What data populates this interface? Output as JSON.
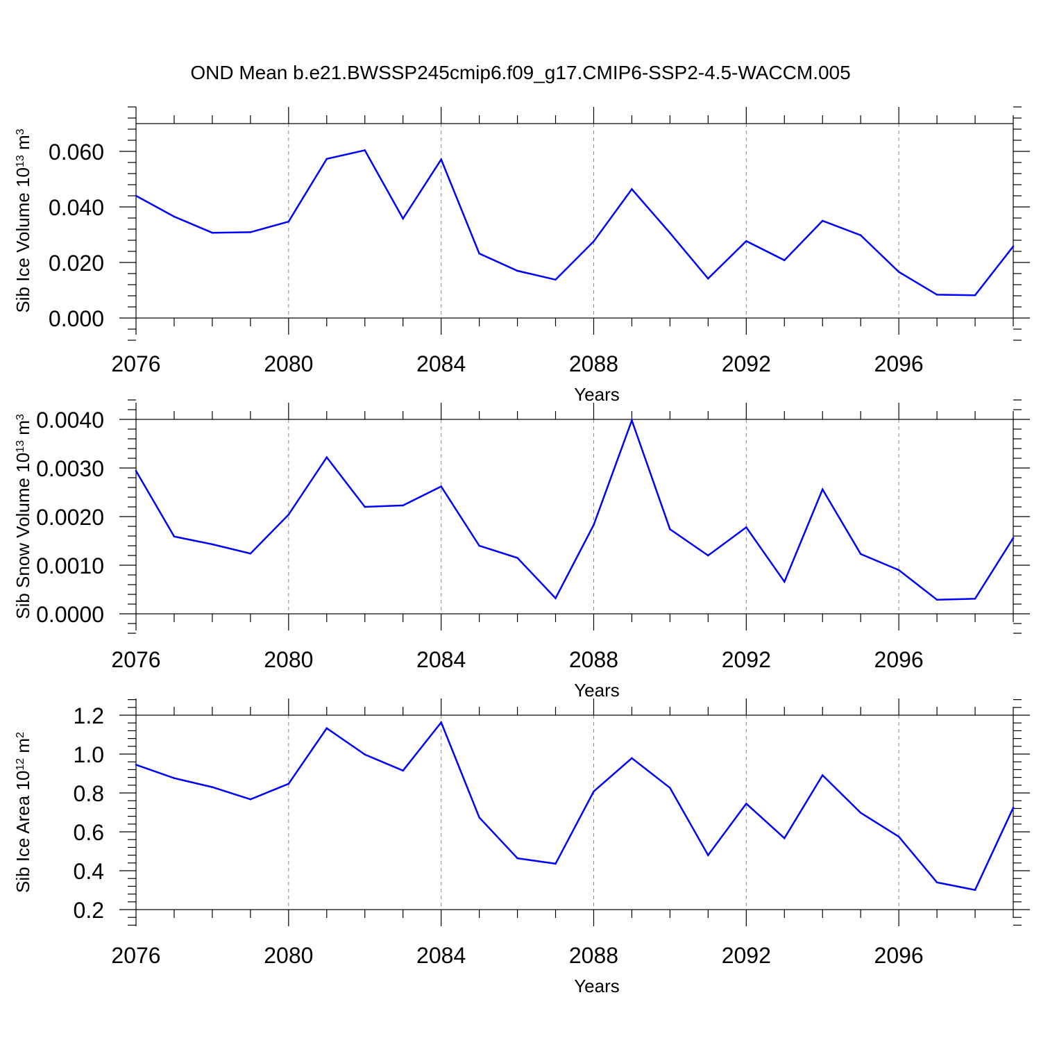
{
  "figure_title": "OND Mean b.e21.BWSSP245cmip6.f09_g17.CMIP6-SSP2-4.5-WACCM.005",
  "colors": {
    "line": "#0000ff",
    "axis": "#000000",
    "grid": "#888888"
  },
  "chart_data": [
    {
      "type": "line",
      "title": "OND Mean b.e21.BWSSP245cmip6.f09_g17.CMIP6-SSP2-4.5-WACCM.005",
      "xlabel": "Years",
      "ylabel_main": "Sib Ice Volume 10",
      "ylabel_exp": "13",
      "ylabel_unit": " m",
      "ylabel_unit_exp": "3",
      "xlim": [
        2076,
        2099
      ],
      "ylim": [
        0.0,
        0.07
      ],
      "xticks": [
        2076,
        2080,
        2084,
        2088,
        2092,
        2096
      ],
      "xtick_labels": [
        "2076",
        "2080",
        "2084",
        "2088",
        "2092",
        "2096"
      ],
      "yticks": [
        0.0,
        0.02,
        0.04,
        0.06
      ],
      "ytick_labels": [
        "0.000",
        "0.020",
        "0.040",
        "0.060"
      ],
      "grid": "vertical dashed at major x ticks",
      "x": [
        2076,
        2077,
        2078,
        2079,
        2080,
        2081,
        2082,
        2083,
        2084,
        2085,
        2086,
        2087,
        2088,
        2089,
        2090,
        2091,
        2092,
        2093,
        2094,
        2095,
        2096,
        2097,
        2098,
        2099
      ],
      "values": [
        0.044,
        0.0365,
        0.0307,
        0.0309,
        0.0347,
        0.0573,
        0.0604,
        0.0358,
        0.0571,
        0.0232,
        0.017,
        0.0138,
        0.0276,
        0.0464,
        0.0306,
        0.0142,
        0.0277,
        0.0208,
        0.035,
        0.0298,
        0.0166,
        0.0084,
        0.0082,
        0.0258
      ]
    },
    {
      "type": "line",
      "xlabel": "Years",
      "ylabel_main": "Sib Snow Volume 10",
      "ylabel_exp": "13",
      "ylabel_unit": " m",
      "ylabel_unit_exp": "3",
      "xlim": [
        2076,
        2099
      ],
      "ylim": [
        0.0,
        0.004
      ],
      "xticks": [
        2076,
        2080,
        2084,
        2088,
        2092,
        2096
      ],
      "xtick_labels": [
        "2076",
        "2080",
        "2084",
        "2088",
        "2092",
        "2096"
      ],
      "yticks": [
        0.0,
        0.001,
        0.002,
        0.003,
        0.004
      ],
      "ytick_labels": [
        "0.0000",
        "0.0010",
        "0.0020",
        "0.0030",
        "0.0040"
      ],
      "grid": "vertical dashed at major x ticks",
      "x": [
        2076,
        2077,
        2078,
        2079,
        2080,
        2081,
        2082,
        2083,
        2084,
        2085,
        2086,
        2087,
        2088,
        2089,
        2090,
        2091,
        2092,
        2093,
        2094,
        2095,
        2096,
        2097,
        2098,
        2099
      ],
      "values": [
        0.00294,
        0.00159,
        0.00143,
        0.00124,
        0.00204,
        0.00322,
        0.0022,
        0.00223,
        0.00262,
        0.0014,
        0.00115,
        0.00032,
        0.00183,
        0.00398,
        0.00174,
        0.0012,
        0.00178,
        0.00066,
        0.00256,
        0.00123,
        0.0009,
        0.00029,
        0.00031,
        0.00156
      ]
    },
    {
      "type": "line",
      "xlabel": "Years",
      "ylabel_main": "Sib Ice Area 10",
      "ylabel_exp": "12",
      "ylabel_unit": " m",
      "ylabel_unit_exp": "2",
      "xlim": [
        2076,
        2099
      ],
      "ylim": [
        0.2,
        1.2
      ],
      "xticks": [
        2076,
        2080,
        2084,
        2088,
        2092,
        2096
      ],
      "xtick_labels": [
        "2076",
        "2080",
        "2084",
        "2088",
        "2092",
        "2096"
      ],
      "yticks": [
        0.2,
        0.4,
        0.6,
        0.8,
        1.0,
        1.2
      ],
      "ytick_labels": [
        "0.2",
        "0.4",
        "0.6",
        "0.8",
        "1.0",
        "1.2"
      ],
      "grid": "vertical dashed at major x ticks",
      "x": [
        2076,
        2077,
        2078,
        2079,
        2080,
        2081,
        2082,
        2083,
        2084,
        2085,
        2086,
        2087,
        2088,
        2089,
        2090,
        2091,
        2092,
        2093,
        2094,
        2095,
        2096,
        2097,
        2098,
        2099
      ],
      "values": [
        0.945,
        0.876,
        0.83,
        0.767,
        0.847,
        1.133,
        0.998,
        0.915,
        1.163,
        0.674,
        0.464,
        0.436,
        0.808,
        0.979,
        0.826,
        0.48,
        0.745,
        0.567,
        0.891,
        0.698,
        0.575,
        0.34,
        0.301,
        0.724
      ]
    }
  ]
}
